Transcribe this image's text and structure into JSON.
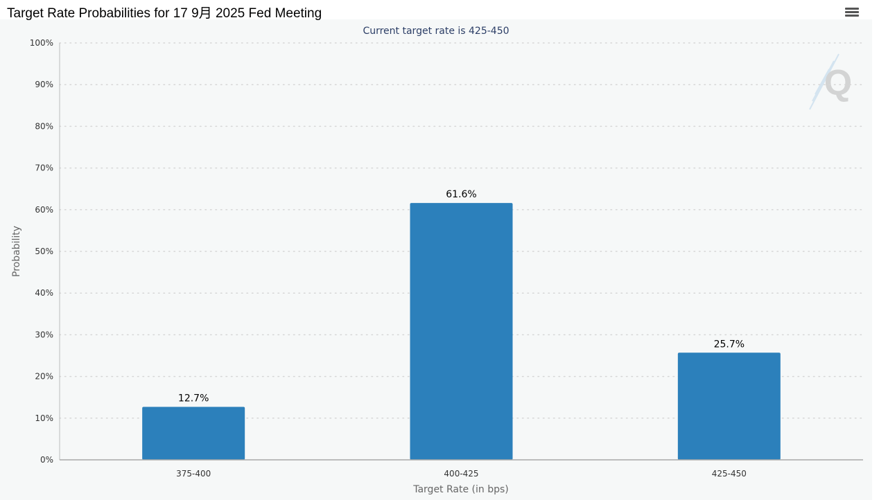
{
  "header": {
    "title": "Target Rate Probabilities for 17 9月 2025 Fed Meeting"
  },
  "toolbar": {
    "menu_icon": "hamburger-menu-icon"
  },
  "watermark": {
    "icon": "cme-quikstrike-q-logo-icon",
    "letter": "Q"
  },
  "colors": {
    "bar": "#2c80bb",
    "panel_bg": "#f6f8f8",
    "grid": "#d6d6d6",
    "subtitle": "#2c3e66"
  },
  "chart_data": {
    "type": "bar",
    "title": "Target Rate Probabilities for 17 9月 2025 Fed Meeting",
    "subtitle": "Current target rate is 425-450",
    "xlabel": "Target Rate (in bps)",
    "ylabel": "Probability",
    "categories": [
      "375-400",
      "400-425",
      "425-450"
    ],
    "values": [
      12.7,
      61.6,
      25.7
    ],
    "data_labels": [
      "12.7%",
      "61.6%",
      "25.7%"
    ],
    "ylim": [
      0,
      100
    ],
    "yticks": [
      0,
      10,
      20,
      30,
      40,
      50,
      60,
      70,
      80,
      90,
      100
    ],
    "ytick_labels": [
      "0%",
      "10%",
      "20%",
      "30%",
      "40%",
      "50%",
      "60%",
      "70%",
      "80%",
      "90%",
      "100%"
    ],
    "grid": true,
    "grid_style": "dotted",
    "legend": "none"
  }
}
